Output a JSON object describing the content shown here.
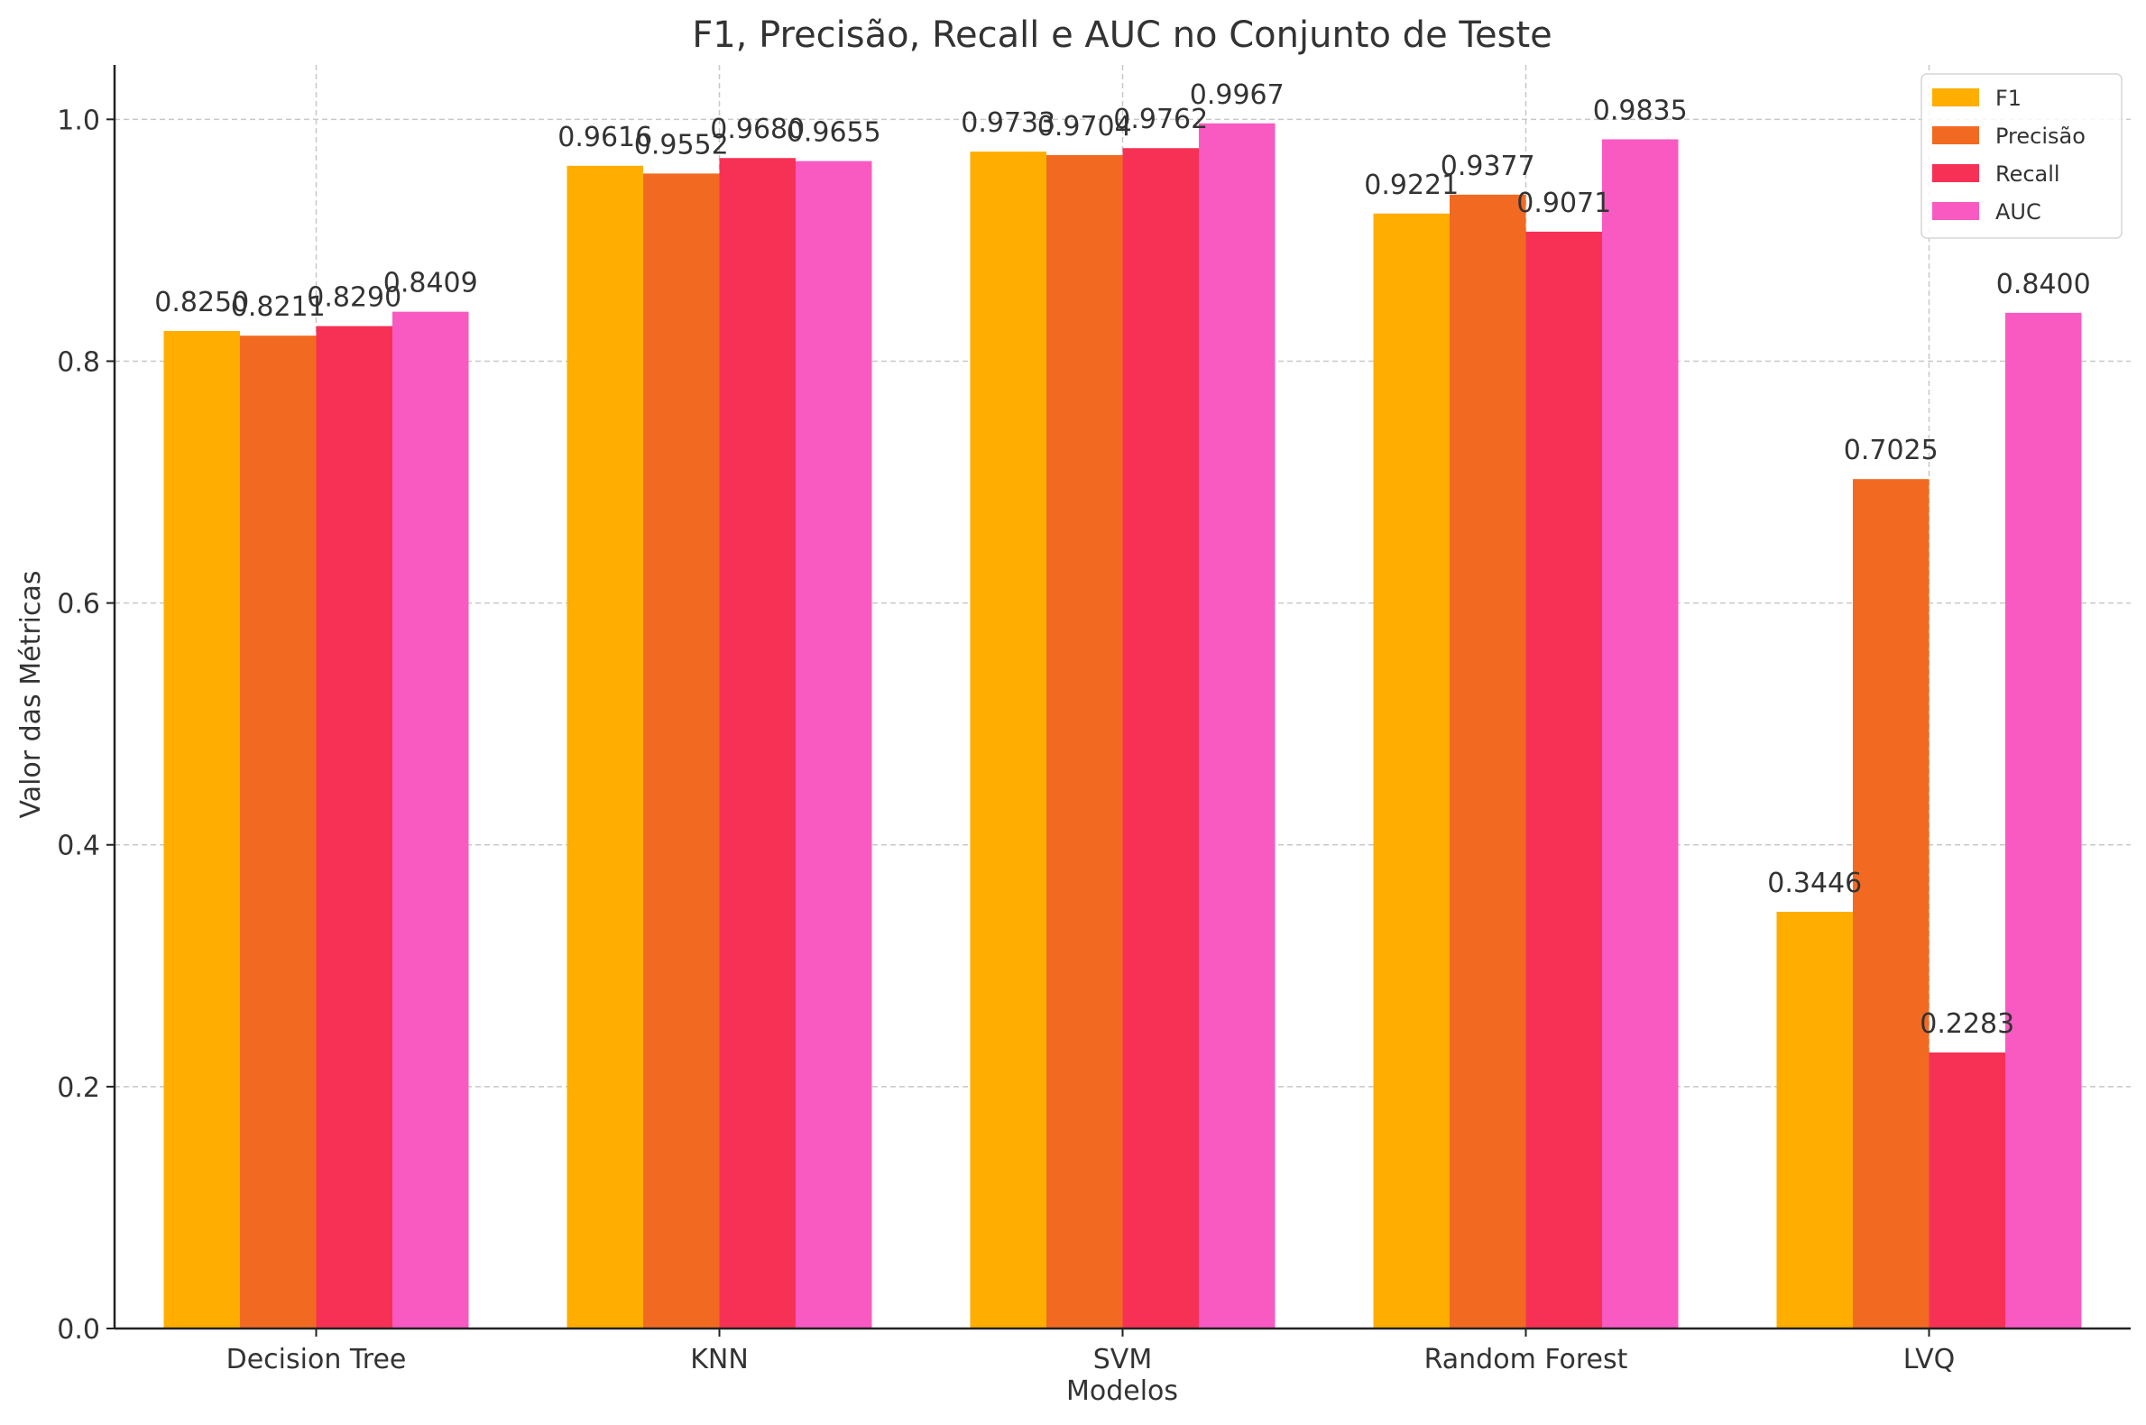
{
  "chart_data": {
    "type": "bar",
    "title": "F1, Precisão, Recall e AUC no Conjunto de Teste",
    "xlabel": "Modelos",
    "ylabel": "Valor das Métricas",
    "categories": [
      "Decision Tree",
      "KNN",
      "SVM",
      "Random Forest",
      "LVQ"
    ],
    "ylim": [
      0,
      1.045
    ],
    "yticks": [
      0.0,
      0.2,
      0.4,
      0.6,
      0.8,
      1.0
    ],
    "ytick_labels": [
      "0.0",
      "0.2",
      "0.4",
      "0.6",
      "0.8",
      "1.0"
    ],
    "grid": true,
    "legend_position": "top-right",
    "series": [
      {
        "name": "F1",
        "color": "#FFAE00",
        "values": [
          0.825,
          0.9616,
          0.9733,
          0.9221,
          0.3446
        ],
        "labels": [
          "0.8250",
          "0.9616",
          "0.9733",
          "0.9221",
          "0.3446"
        ]
      },
      {
        "name": "Precisão",
        "color": "#F26A22",
        "values": [
          0.8211,
          0.9552,
          0.9704,
          0.9377,
          0.7025
        ],
        "labels": [
          "0.8211",
          "0.9552",
          "0.9704",
          "0.9377",
          "0.7025"
        ]
      },
      {
        "name": "Recall",
        "color": "#F73155",
        "values": [
          0.829,
          0.968,
          0.9762,
          0.9071,
          0.2283
        ],
        "labels": [
          "0.8290",
          "0.9680",
          "0.9762",
          "0.9071",
          "0.2283"
        ]
      },
      {
        "name": "AUC",
        "color": "#F95AC2",
        "values": [
          0.8409,
          0.9655,
          0.9967,
          0.9835,
          0.84
        ],
        "labels": [
          "0.8409",
          "0.9655",
          "0.9967",
          "0.9835",
          "0.8400"
        ]
      }
    ]
  }
}
